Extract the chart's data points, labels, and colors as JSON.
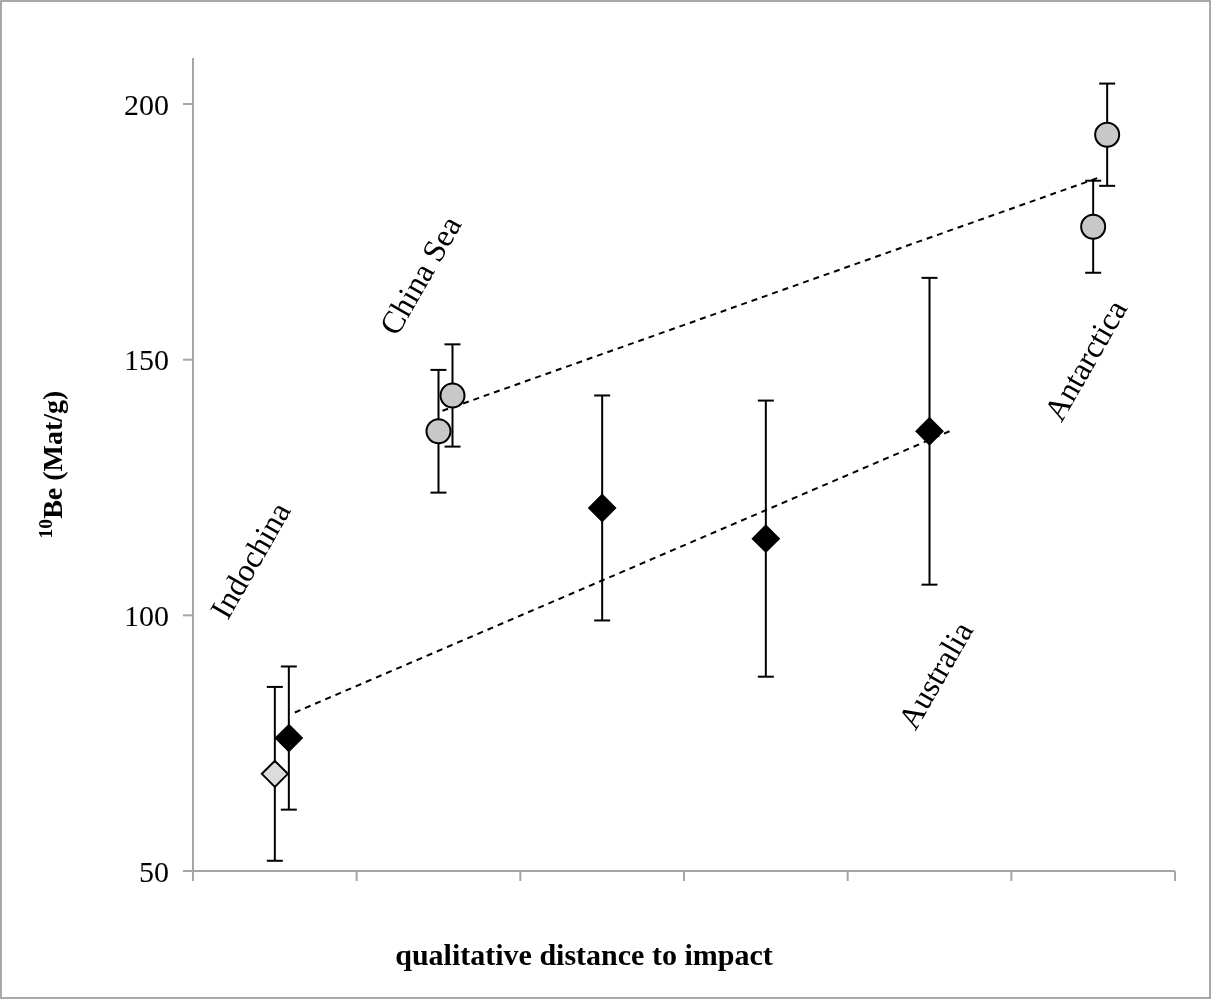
{
  "chart_data": {
    "type": "scatter",
    "xlabel": "qualitative distance to impact",
    "ylabel": "$^{10}$Be (Mat/g)",
    "categories": [
      null,
      null,
      null,
      null,
      null,
      null
    ],
    "ylim": [
      50,
      209
    ],
    "yticks": [
      50,
      100,
      150,
      200
    ],
    "tick_labels": "y",
    "series": [
      {
        "marker": "diamond",
        "color": "#dcdcdc",
        "values": [
          69,
          null,
          null,
          null,
          null,
          null
        ],
        "errors": [
          17,
          null,
          null,
          null,
          null,
          null
        ]
      },
      {
        "marker": "diamond",
        "color": "#000000",
        "values": [
          76,
          null,
          121,
          115,
          136,
          null
        ],
        "errors": [
          14,
          null,
          22,
          27,
          30,
          null
        ]
      },
      {
        "marker": "circle",
        "color": "#c8c8c8",
        "values": [
          null,
          136,
          null,
          null,
          null,
          176
        ],
        "errors": [
          null,
          12,
          null,
          null,
          null,
          9
        ]
      },
      {
        "marker": "circle",
        "color": "#c8c8c8",
        "values": [
          null,
          143,
          null,
          null,
          null,
          194
        ],
        "errors": [
          null,
          10,
          null,
          null,
          null,
          10
        ]
      },
      {
        "type": "line",
        "marker": "none",
        "line_style": "dashed",
        "color": "#000000",
        "values": [
          81,
          null,
          null,
          null,
          136,
          null
        ]
      },
      {
        "type": "line",
        "marker": "none",
        "line_style": "dashed",
        "color": "#000000",
        "values": [
          null,
          140,
          null,
          null,
          null,
          185.5
        ]
      }
    ],
    "annotations": [
      "Indochina",
      "China Sea",
      "Australia",
      "Antarctica"
    ]
  }
}
